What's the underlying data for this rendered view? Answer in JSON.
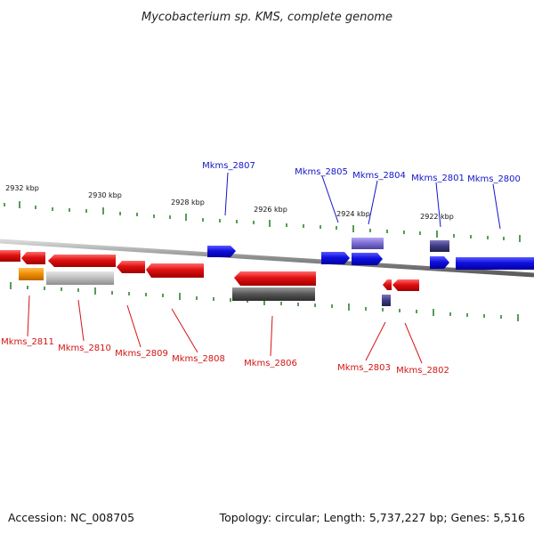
{
  "title": "Mycobacterium sp. KMS, complete genome",
  "footer": {
    "accession": "Accession: NC_008705",
    "summary": "Topology: circular; Length: 5,737,227 bp; Genes: 5,516"
  },
  "colors": {
    "forward": "#1515e6",
    "reverse": "#e61414",
    "pseudo": "#f08c00",
    "light_gray": "#bdbdbd",
    "dark_gray": "#555555",
    "lavender": "#7a6bd0",
    "dark_purple": "#3d3a80",
    "tick": "#1f7a1f",
    "backbone": "#8c8c8c"
  },
  "scale": {
    "ticks": [
      {
        "label": "2932 kbp"
      },
      {
        "label": "2930 kbp"
      },
      {
        "label": "2928 kbp"
      },
      {
        "label": "2926 kbp"
      },
      {
        "label": "2924 kbp"
      },
      {
        "label": "2922 kbp"
      }
    ]
  },
  "labels": {
    "forward": [
      "Mkms_2807",
      "Mkms_2805",
      "Mkms_2804",
      "Mkms_2801",
      "Mkms_2800"
    ],
    "reverse": [
      "Mkms_2811",
      "Mkms_2810",
      "Mkms_2809",
      "Mkms_2808",
      "Mkms_2806",
      "Mkms_2803",
      "Mkms_2802"
    ]
  }
}
